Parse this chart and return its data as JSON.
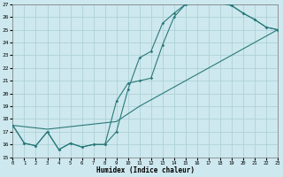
{
  "xlabel": "Humidex (Indice chaleur)",
  "bg_color": "#cde8ee",
  "line_color": "#2a7a7a",
  "grid_color": "#a8cdd5",
  "xlim": [
    0,
    23
  ],
  "ylim": [
    15,
    27
  ],
  "xticks": [
    0,
    1,
    2,
    3,
    4,
    5,
    6,
    7,
    8,
    9,
    10,
    11,
    12,
    13,
    14,
    15,
    16,
    17,
    18,
    19,
    20,
    21,
    22,
    23
  ],
  "yticks": [
    15,
    16,
    17,
    18,
    19,
    20,
    21,
    22,
    23,
    24,
    25,
    26,
    27
  ],
  "line1_x": [
    0,
    1,
    2,
    3,
    4,
    5,
    6,
    7,
    8,
    9,
    10,
    11,
    12,
    13,
    14,
    15,
    16,
    17,
    18,
    19,
    20,
    21,
    22,
    23
  ],
  "line1_y": [
    17.5,
    16.1,
    15.9,
    17.0,
    15.6,
    16.1,
    15.8,
    16.0,
    16.0,
    17.0,
    20.3,
    22.8,
    23.3,
    25.5,
    26.3,
    27.0,
    27.1,
    27.3,
    27.1,
    26.9,
    26.3,
    25.8,
    25.2,
    25.0
  ],
  "line2_x": [
    0,
    1,
    2,
    3,
    4,
    5,
    6,
    7,
    8,
    9,
    10,
    11,
    12,
    13,
    14,
    15,
    16,
    17,
    18,
    19,
    20,
    21,
    22,
    23
  ],
  "line2_y": [
    17.5,
    16.1,
    15.9,
    17.0,
    15.6,
    16.1,
    15.8,
    16.0,
    16.0,
    19.4,
    20.8,
    21.0,
    21.2,
    23.8,
    26.0,
    27.0,
    27.1,
    27.3,
    27.1,
    26.9,
    26.3,
    25.8,
    25.2,
    25.0
  ],
  "line3_x": [
    0,
    3,
    9,
    11,
    14,
    17,
    19,
    21,
    23
  ],
  "line3_y": [
    17.5,
    17.2,
    17.8,
    19.0,
    20.5,
    22.0,
    23.0,
    24.0,
    25.0
  ]
}
